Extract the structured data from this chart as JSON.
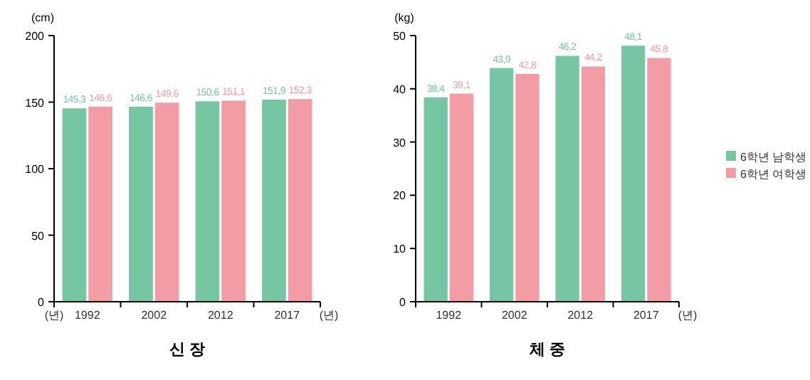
{
  "chart_data": [
    {
      "type": "bar",
      "title": "신 장",
      "ylabel": "(cm)",
      "xlabel": "(년)",
      "annotations": [
        "(년)"
      ],
      "categories": [
        "1992",
        "2002",
        "2012",
        "2017"
      ],
      "ylim": [
        0,
        200
      ],
      "yticks": [
        0,
        50,
        100,
        150,
        200
      ],
      "grid": false,
      "series": [
        {
          "color": "#76c5a3",
          "values": [
            145.3,
            146.6,
            150.6,
            151.9
          ],
          "value_labels": [
            "145,3",
            "146,6",
            "150,6",
            "151,9"
          ]
        },
        {
          "color": "#f29ca6",
          "values": [
            146.6,
            149.6,
            151.1,
            152.3
          ],
          "value_labels": [
            "146,6",
            "149,6",
            "151,1",
            "152,3"
          ]
        }
      ]
    },
    {
      "type": "bar",
      "title": "체 중",
      "ylabel": "(kg)",
      "xlabel": "(년)",
      "categories": [
        "1992",
        "2002",
        "2012",
        "2017"
      ],
      "ylim": [
        0,
        50
      ],
      "yticks": [
        0,
        10,
        20,
        30,
        40,
        50
      ],
      "grid": false,
      "legend": "right",
      "series": [
        {
          "name": "6학년 남학생",
          "color": "#76c5a3",
          "values": [
            38.4,
            43.9,
            46.2,
            48.1
          ],
          "value_labels": [
            "38,4",
            "43,9",
            "46,2",
            "48,1"
          ]
        },
        {
          "name": "6학년 여학생",
          "color": "#f29ca6",
          "values": [
            39.1,
            42.8,
            44.2,
            45.8
          ],
          "value_labels": [
            "39,1",
            "42,8",
            "44,2",
            "45,8"
          ]
        }
      ]
    }
  ]
}
